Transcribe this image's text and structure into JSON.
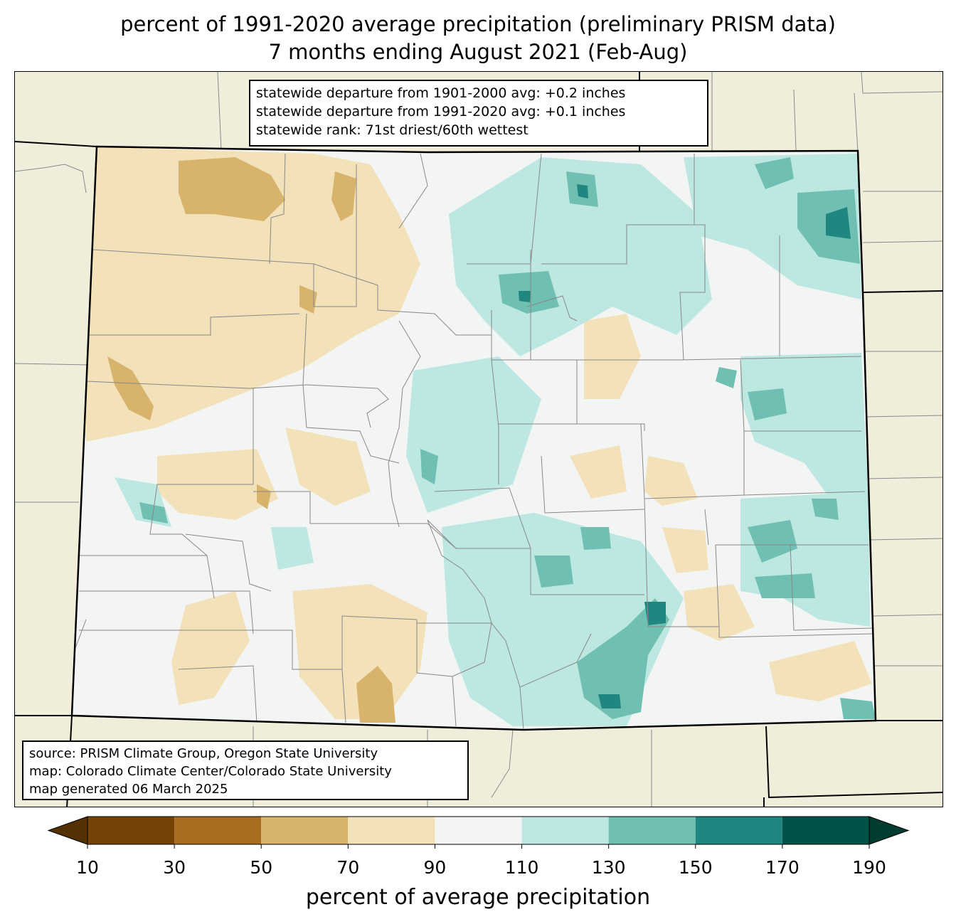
{
  "title": {
    "line1": "percent of 1991-2020 average precipitation (preliminary PRISM data)",
    "line2": "7 months ending August 2021 (Feb-Aug)"
  },
  "stats": {
    "line1": "statewide departure from 1901-2000 avg: +0.2 inches",
    "line2": "statewide departure from 1991-2020 avg: +0.1 inches",
    "line3": "statewide rank: 71st driest/60th wettest"
  },
  "source": {
    "line1": "source: PRISM Climate Group, Oregon State University",
    "line2": "map: Colorado Climate Center/Colorado State University",
    "line3": "map generated 06 March 2025"
  },
  "colorbar": {
    "label": "percent of average precipitation",
    "ticks": [
      "10",
      "30",
      "50",
      "70",
      "90",
      "110",
      "130",
      "150",
      "170",
      "190"
    ],
    "colors": [
      "#734405",
      "#a96d22",
      "#d8b36b",
      "#f3e2b9",
      "#f3f5f4",
      "#bde7e1",
      "#6fc0b2",
      "#1f8780",
      "#005347"
    ],
    "under_color": "#543005",
    "over_color": "#003c30"
  },
  "background_color": "#f0eedb"
}
